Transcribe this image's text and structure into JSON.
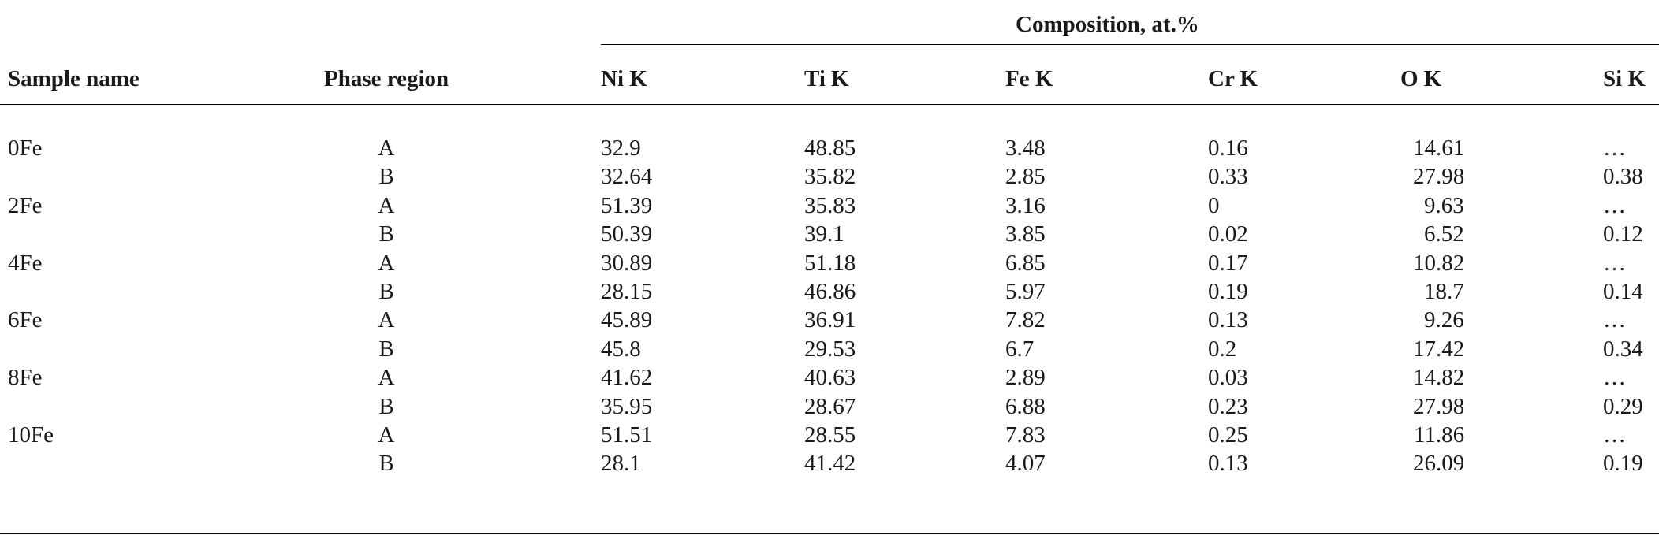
{
  "table": {
    "group_header": "Composition, at.%",
    "columns": [
      "Sample name",
      "Phase region",
      "Ni K",
      "Ti K",
      "Fe K",
      "Cr K",
      "O K",
      "Si K"
    ],
    "rows": [
      {
        "sample": "0Fe",
        "phase": "A",
        "values": [
          "32.9",
          "48.85",
          "3.48",
          "0.16",
          "14.61",
          "…"
        ]
      },
      {
        "sample": "",
        "phase": "B",
        "values": [
          "32.64",
          "35.82",
          "2.85",
          "0.33",
          "27.98",
          "0.38"
        ]
      },
      {
        "sample": "2Fe",
        "phase": "A",
        "values": [
          "51.39",
          "35.83",
          "3.16",
          "0",
          "9.63",
          "…"
        ]
      },
      {
        "sample": "",
        "phase": "B",
        "values": [
          "50.39",
          "39.1",
          "3.85",
          "0.02",
          "6.52",
          "0.12"
        ]
      },
      {
        "sample": "4Fe",
        "phase": "A",
        "values": [
          "30.89",
          "51.18",
          "6.85",
          "0.17",
          "10.82",
          "…"
        ]
      },
      {
        "sample": "",
        "phase": "B",
        "values": [
          "28.15",
          "46.86",
          "5.97",
          "0.19",
          "18.7",
          "0.14"
        ]
      },
      {
        "sample": "6Fe",
        "phase": "A",
        "values": [
          "45.89",
          "36.91",
          "7.82",
          "0.13",
          "9.26",
          "…"
        ]
      },
      {
        "sample": "",
        "phase": "B",
        "values": [
          "45.8",
          "29.53",
          "6.7",
          "0.2",
          "17.42",
          "0.34"
        ]
      },
      {
        "sample": "8Fe",
        "phase": "A",
        "values": [
          "41.62",
          "40.63",
          "2.89",
          "0.03",
          "14.82",
          "…"
        ]
      },
      {
        "sample": "",
        "phase": "B",
        "values": [
          "35.95",
          "28.67",
          "6.88",
          "0.23",
          "27.98",
          "0.29"
        ]
      },
      {
        "sample": "10Fe",
        "phase": "A",
        "values": [
          "51.51",
          "28.55",
          "7.83",
          "0.25",
          "11.86",
          "…"
        ]
      },
      {
        "sample": "",
        "phase": "B",
        "values": [
          "28.1",
          "41.42",
          "4.07",
          "0.13",
          "26.09",
          "0.19"
        ]
      }
    ]
  }
}
